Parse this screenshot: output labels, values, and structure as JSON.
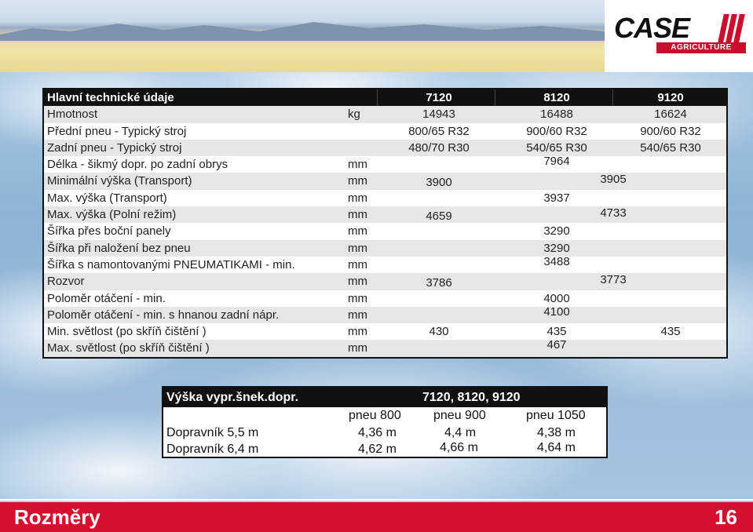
{
  "brand": {
    "logo_text": "CASE",
    "logo_sub": "AGRICULTURE",
    "brand_red": "#c8102e"
  },
  "spec_table": {
    "header": {
      "label": "Hlavní technické údaje",
      "models": [
        "7120",
        "8120",
        "9120"
      ]
    },
    "rows": [
      {
        "label": "Hmotnost",
        "unit": "kg",
        "values": [
          "14943",
          "16488",
          "16624"
        ]
      },
      {
        "label": "Přední pneu - Typický stroj",
        "unit": "",
        "values": [
          "800/65 R32",
          "900/60 R32",
          "900/60 R32"
        ]
      },
      {
        "label": "Zadní pneu - Typický stroj",
        "unit": "",
        "values": [
          "480/70 R30",
          "540/65 R30",
          "540/65 R30"
        ]
      },
      {
        "label": "Délka - šikmý dopr. po zadní obrys",
        "unit": "mm",
        "shared": "7964"
      },
      {
        "label": "Minimální výška (Transport)",
        "unit": "mm",
        "first": "3900",
        "rest": "3905"
      },
      {
        "label": "Max. výška (Transport)",
        "unit": "mm",
        "shared": "3937"
      },
      {
        "label": "Max. výška (Polní režim)",
        "unit": "mm",
        "first": "4659",
        "rest": "4733"
      },
      {
        "label": "Šířka přes boční panely",
        "unit": "mm",
        "shared": "3290"
      },
      {
        "label": "Šířka při naložení bez pneu",
        "unit": "mm",
        "shared": "3290"
      },
      {
        "label": "Šířka s namontovanými PNEUMATIKAMI  - min.",
        "unit": "mm",
        "shared": "3488"
      },
      {
        "label": "Rozvor",
        "unit": "mm",
        "first": "3786",
        "rest": "3773"
      },
      {
        "label": "Poloměr otáčení - min.",
        "unit": "mm",
        "shared": "4000"
      },
      {
        "label": "Poloměr otáčení - min. s hnanou zadní nápr.",
        "unit": "mm",
        "shared": "4100"
      },
      {
        "label": "Min. světlost (po skříň čištění )",
        "unit": "mm",
        "values": [
          "430",
          "435",
          "435"
        ]
      },
      {
        "label": "Max. světlost (po skříň čištění )",
        "unit": "mm",
        "shared": "467"
      }
    ]
  },
  "auger_table": {
    "title": "Výška vypr.šnek.dopr.",
    "models": "7120, 8120, 9120",
    "tyres": [
      "pneu 800",
      "pneu 900",
      "pneu 1050"
    ],
    "rows": [
      {
        "label": "Dopravník 5,5 m",
        "values": [
          "4,36 m",
          "4,4 m",
          "4,38 m"
        ]
      },
      {
        "label": "Dopravník 6,4 m",
        "values": [
          "4,62 m",
          "4,66 m",
          "4,64 m"
        ]
      }
    ]
  },
  "footer": {
    "title": "Rozměry",
    "page": "16",
    "color": "#d50f2f"
  }
}
